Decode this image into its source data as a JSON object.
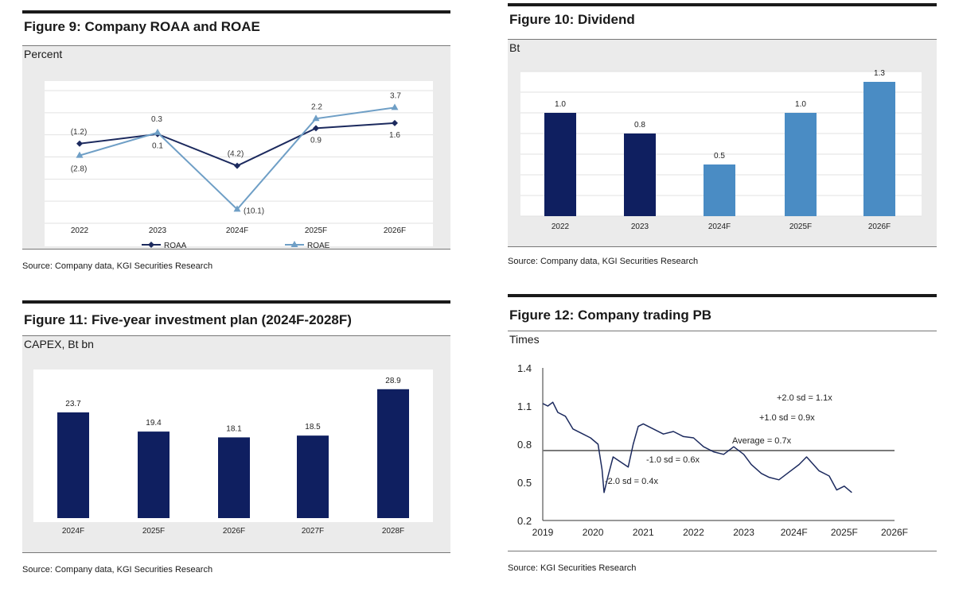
{
  "figures": [
    {
      "title": "Figure 9: Company ROAA and ROAE",
      "unit": "Percent",
      "source": "Source: Company data, KGI Securities Research"
    },
    {
      "title": "Figure 10: Dividend",
      "unit": "Bt",
      "source": "Source: Company data, KGI Securities Research"
    },
    {
      "title": "Figure 11: Five-year investment plan (2024F-2028F)",
      "unit": "CAPEX, Bt bn",
      "source": "Source: Company data, KGI Securities Research"
    },
    {
      "title": "Figure 12: Company trading PB",
      "unit": "Times",
      "source": "Source: KGI Securities Research"
    }
  ],
  "chart_data": [
    {
      "type": "line",
      "title": "Figure 9: Company ROAA and ROAE",
      "ylabel": "Percent",
      "categories": [
        "2022",
        "2023",
        "2024F",
        "2025F",
        "2026F"
      ],
      "ylim": [
        -12,
        6
      ],
      "series": [
        {
          "name": "ROAA",
          "values": [
            -1.2,
            0.1,
            -4.2,
            0.9,
            1.6
          ],
          "labels": [
            "(1.2)",
            "0.1",
            "(4.2)",
            "0.9",
            "1.6"
          ],
          "color": "#1c2a5e",
          "marker": "diamond"
        },
        {
          "name": "ROAE",
          "values": [
            -2.8,
            0.3,
            -10.1,
            2.2,
            3.7
          ],
          "labels": [
            "(2.8)",
            "0.3",
            "(10.1)",
            "2.2",
            "3.7"
          ],
          "color": "#6f9fc6",
          "marker": "triangle"
        }
      ],
      "legend": "bottom"
    },
    {
      "type": "bar",
      "title": "Figure 10: Dividend",
      "ylabel": "Bt",
      "categories": [
        "2022",
        "2023",
        "2024F",
        "2025F",
        "2026F"
      ],
      "values": [
        1.0,
        0.8,
        0.5,
        1.0,
        1.3
      ],
      "labels": [
        "1.0",
        "0.8",
        "0.5",
        "1.0",
        "1.3"
      ],
      "colors": [
        "#0f1f60",
        "#0f1f60",
        "#4a8cc4",
        "#4a8cc4",
        "#4a8cc4"
      ],
      "ylim": [
        0,
        1.4
      ],
      "grid": true
    },
    {
      "type": "bar",
      "title": "Figure 11: Five-year investment plan (2024F-2028F)",
      "ylabel": "CAPEX, Bt bn",
      "categories": [
        "2024F",
        "2025F",
        "2026F",
        "2027F",
        "2028F"
      ],
      "values": [
        23.7,
        19.4,
        18.1,
        18.5,
        28.9
      ],
      "labels": [
        "23.7",
        "19.4",
        "18.1",
        "18.5",
        "28.9"
      ],
      "colors": [
        "#0f1f60",
        "#0f1f60",
        "#0f1f60",
        "#0f1f60",
        "#0f1f60"
      ],
      "ylim": [
        0,
        31
      ]
    },
    {
      "type": "line",
      "title": "Figure 12: Company trading PB",
      "ylabel": "Times",
      "xticks": [
        "2019",
        "2020",
        "2021",
        "2022",
        "2023",
        "2024F",
        "2025F",
        "2026F"
      ],
      "xlim": [
        2019,
        2026
      ],
      "yticks": [
        "1.4",
        "1.1",
        "0.8",
        "0.5",
        "0.2"
      ],
      "ylim": [
        0.2,
        1.4
      ],
      "average_line": 0.75,
      "annotations": [
        "+2.0 sd = 1.1x",
        "+1.0 sd = 0.9x",
        "Average = 0.7x",
        "-1.0 sd = 0.6x",
        "-2.0 sd = 0.4x"
      ],
      "series": [
        {
          "name": "PB",
          "color": "#1c2a5e",
          "x": [
            2019.0,
            2019.1,
            2019.2,
            2019.3,
            2019.45,
            2019.6,
            2019.8,
            2019.95,
            2020.1,
            2020.18,
            2020.22,
            2020.3,
            2020.4,
            2020.55,
            2020.7,
            2020.8,
            2020.9,
            2021.0,
            2021.2,
            2021.4,
            2021.6,
            2021.8,
            2022.0,
            2022.2,
            2022.4,
            2022.6,
            2022.8,
            2023.0,
            2023.15,
            2023.35,
            2023.5,
            2023.7,
            2023.9,
            2024.1,
            2024.25,
            2024.5,
            2024.7,
            2024.85,
            2025.0,
            2025.15
          ],
          "y": [
            1.12,
            1.1,
            1.13,
            1.05,
            1.02,
            0.92,
            0.88,
            0.85,
            0.8,
            0.6,
            0.42,
            0.55,
            0.7,
            0.66,
            0.62,
            0.8,
            0.94,
            0.96,
            0.92,
            0.88,
            0.9,
            0.86,
            0.85,
            0.78,
            0.74,
            0.72,
            0.78,
            0.72,
            0.64,
            0.57,
            0.54,
            0.52,
            0.58,
            0.64,
            0.7,
            0.59,
            0.55,
            0.44,
            0.47,
            0.42
          ]
        }
      ]
    }
  ]
}
